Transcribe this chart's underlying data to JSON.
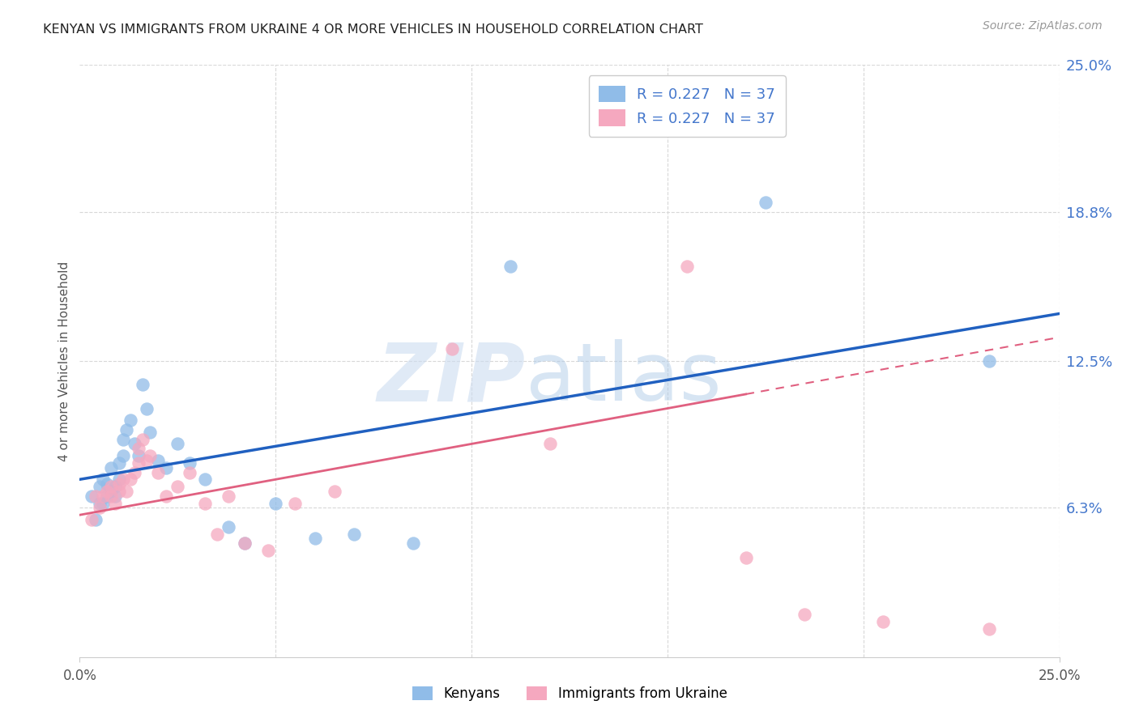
{
  "title": "KENYAN VS IMMIGRANTS FROM UKRAINE 4 OR MORE VEHICLES IN HOUSEHOLD CORRELATION CHART",
  "source": "Source: ZipAtlas.com",
  "ylabel": "4 or more Vehicles in Household",
  "xmin": 0.0,
  "xmax": 0.25,
  "ymin": 0.0,
  "ymax": 0.25,
  "ytick_values": [
    0.063,
    0.125,
    0.188,
    0.25
  ],
  "ytick_labels": [
    "6.3%",
    "12.5%",
    "18.8%",
    "25.0%"
  ],
  "kenyan_color": "#90bce8",
  "ukraine_color": "#f5a8bf",
  "kenyan_line_color": "#2060c0",
  "ukraine_line_color": "#e06080",
  "kenyan_x": [
    0.003,
    0.004,
    0.005,
    0.005,
    0.006,
    0.006,
    0.007,
    0.007,
    0.008,
    0.008,
    0.009,
    0.009,
    0.01,
    0.01,
    0.011,
    0.011,
    0.012,
    0.013,
    0.014,
    0.015,
    0.016,
    0.017,
    0.018,
    0.02,
    0.022,
    0.025,
    0.028,
    0.032,
    0.038,
    0.042,
    0.05,
    0.06,
    0.07,
    0.085,
    0.11,
    0.175,
    0.232
  ],
  "kenyan_y": [
    0.068,
    0.058,
    0.065,
    0.072,
    0.065,
    0.075,
    0.068,
    0.073,
    0.07,
    0.08,
    0.072,
    0.068,
    0.082,
    0.075,
    0.092,
    0.085,
    0.096,
    0.1,
    0.09,
    0.085,
    0.115,
    0.105,
    0.095,
    0.083,
    0.08,
    0.09,
    0.082,
    0.075,
    0.055,
    0.048,
    0.065,
    0.05,
    0.052,
    0.048,
    0.165,
    0.192,
    0.125
  ],
  "ukraine_x": [
    0.003,
    0.004,
    0.005,
    0.006,
    0.007,
    0.008,
    0.008,
    0.009,
    0.01,
    0.01,
    0.011,
    0.012,
    0.013,
    0.014,
    0.015,
    0.015,
    0.016,
    0.017,
    0.018,
    0.02,
    0.022,
    0.025,
    0.028,
    0.032,
    0.035,
    0.038,
    0.042,
    0.048,
    0.055,
    0.065,
    0.095,
    0.12,
    0.155,
    0.17,
    0.185,
    0.205,
    0.232
  ],
  "ukraine_y": [
    0.058,
    0.068,
    0.063,
    0.068,
    0.07,
    0.068,
    0.072,
    0.065,
    0.073,
    0.07,
    0.075,
    0.07,
    0.075,
    0.078,
    0.088,
    0.082,
    0.092,
    0.083,
    0.085,
    0.078,
    0.068,
    0.072,
    0.078,
    0.065,
    0.052,
    0.068,
    0.048,
    0.045,
    0.065,
    0.07,
    0.13,
    0.09,
    0.165,
    0.042,
    0.018,
    0.015,
    0.012
  ],
  "background_color": "#ffffff",
  "grid_color": "#d8d8d8",
  "legend_color": "#4477cc",
  "legend_text_color": "#333333",
  "right_tick_color": "#4477cc",
  "watermark_zip_color": "#ccdcf0",
  "watermark_atlas_color": "#b0cce8"
}
